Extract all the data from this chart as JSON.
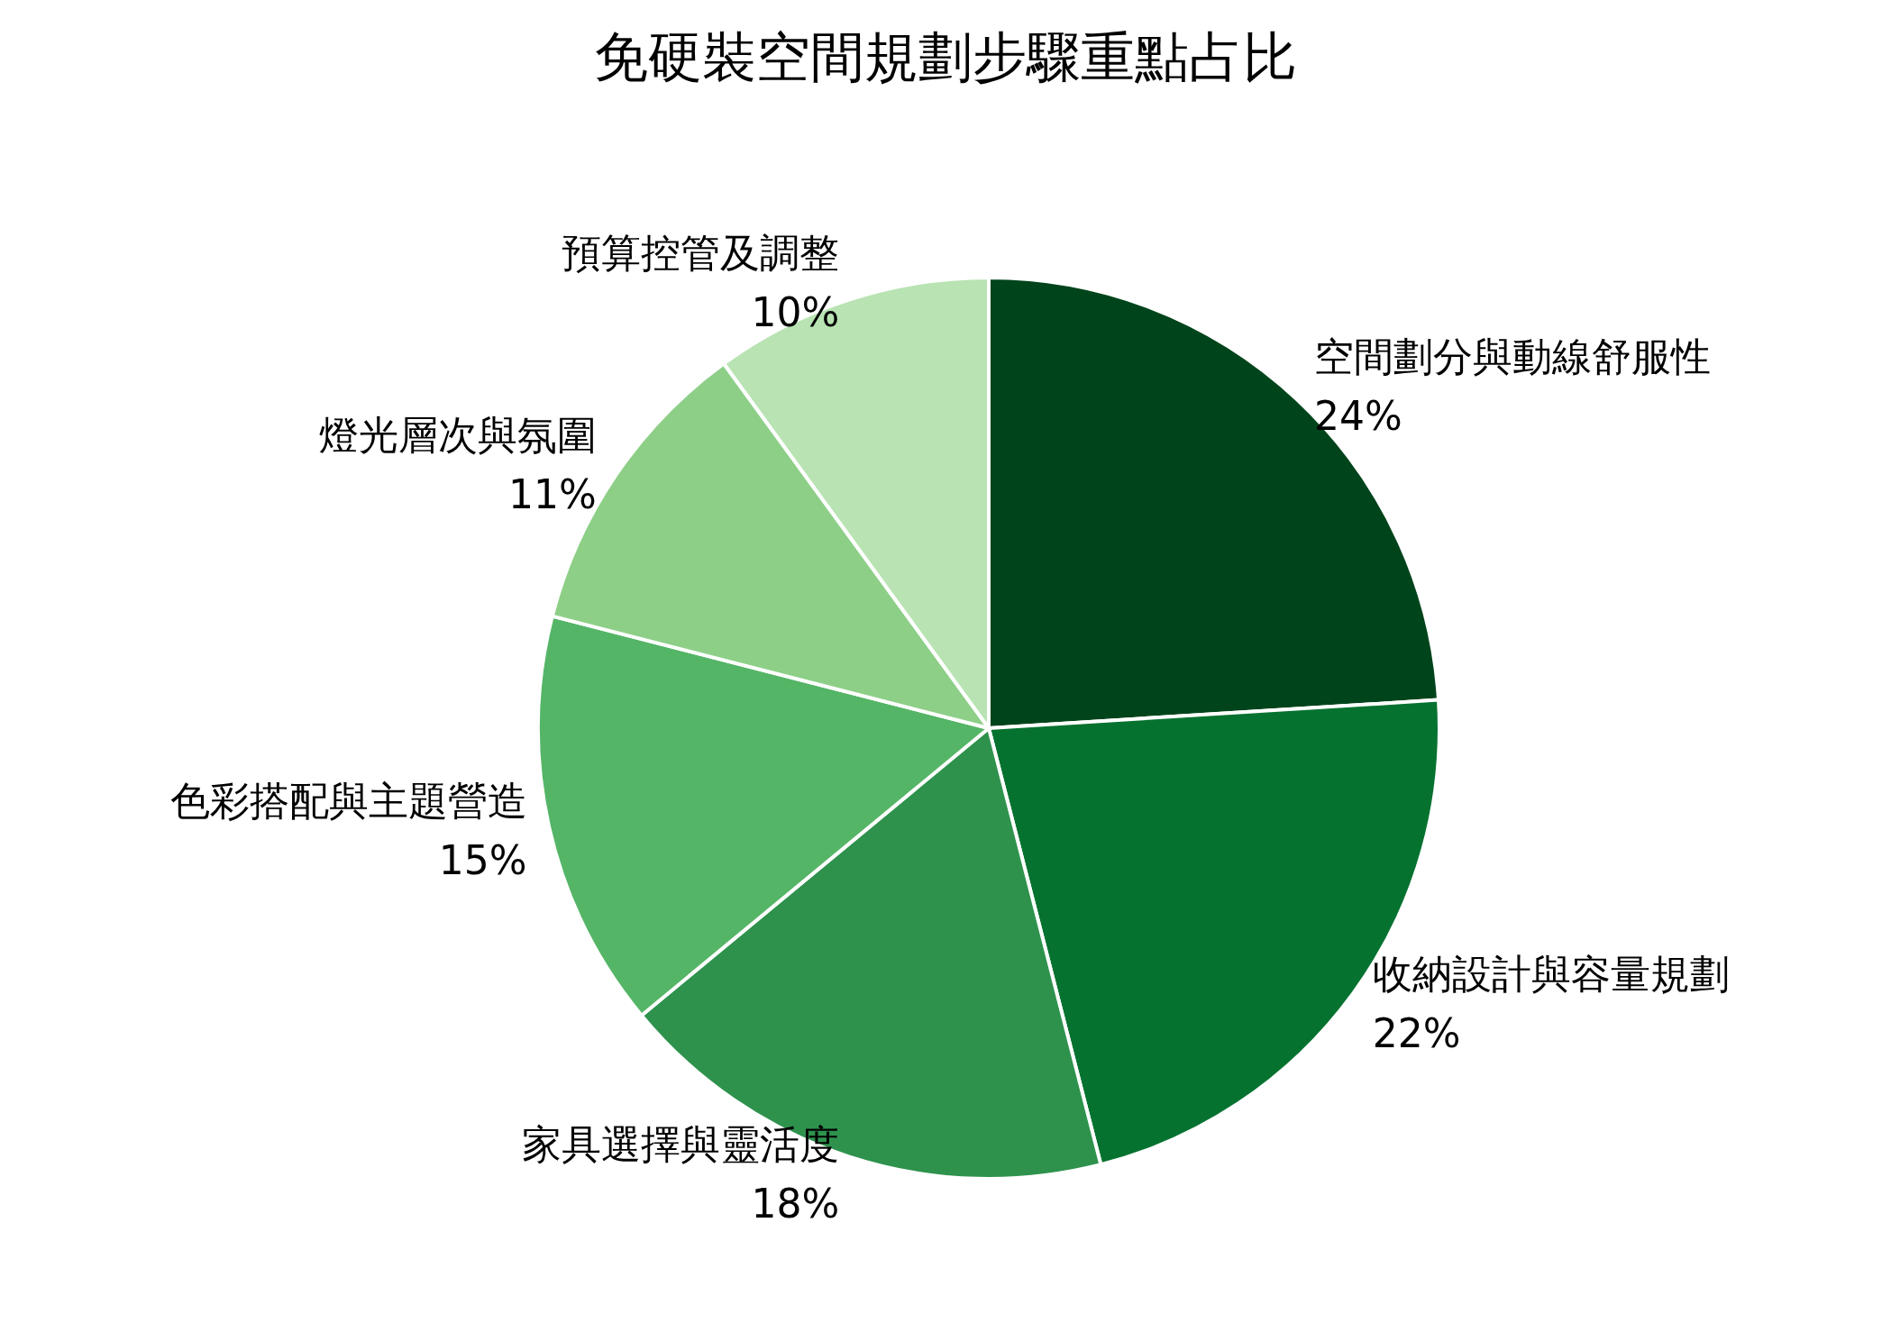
{
  "chart_data": {
    "type": "pie",
    "title": "免硬裝空間規劃步驟重點占比",
    "categories": [
      "空間劃分與動線舒服性",
      "收納設計與容量規劃",
      "家具選擇與靈活度",
      "色彩搭配與主題營造",
      "燈光層次與氛圍",
      "預算控管及調整"
    ],
    "values": [
      24,
      22,
      18,
      15,
      11,
      10
    ],
    "value_labels": [
      "24%",
      "22%",
      "18%",
      "15%",
      "11%",
      "10%"
    ],
    "colors": [
      "#00441b",
      "#067230",
      "#2e924d",
      "#55b567",
      "#8ecf88",
      "#b9e3b3"
    ],
    "legend": false
  }
}
